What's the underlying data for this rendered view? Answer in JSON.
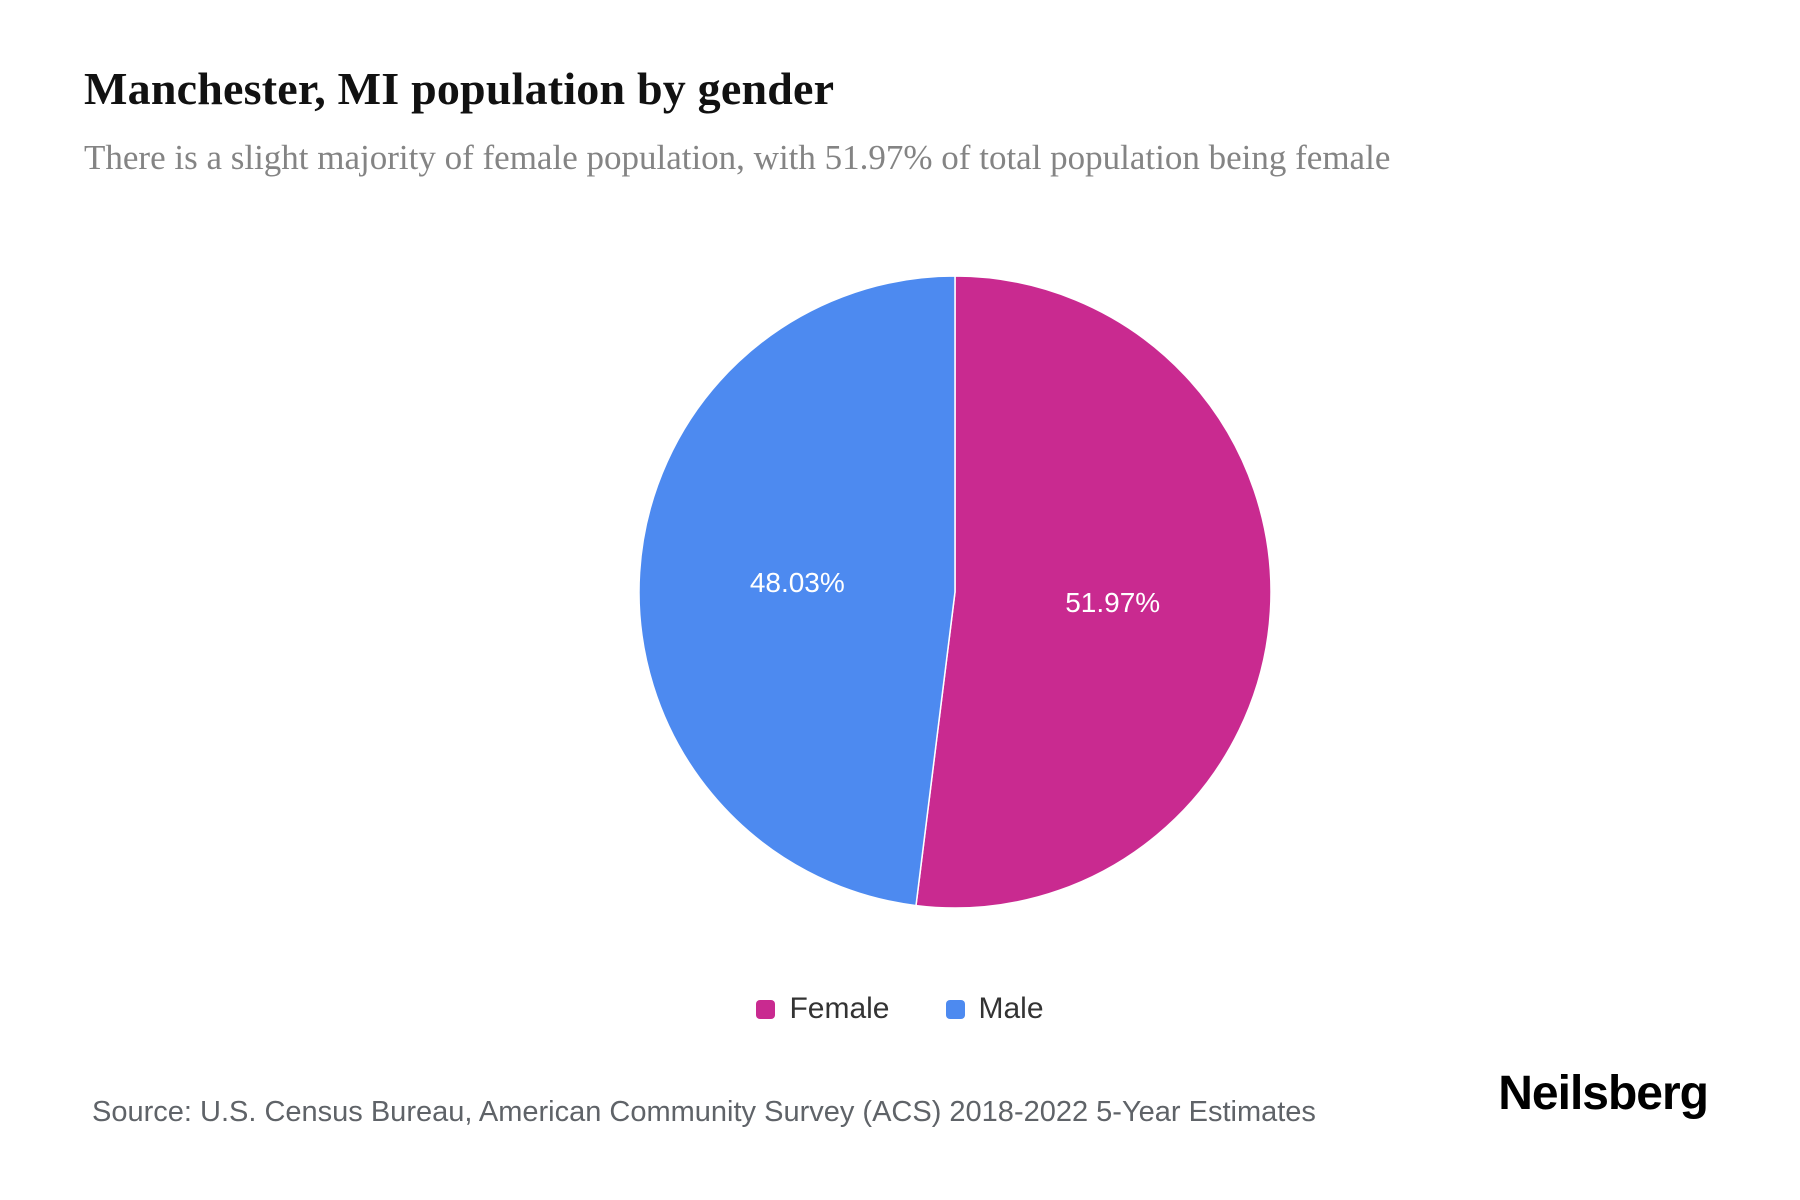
{
  "header": {
    "title": "Manchester, MI population by gender",
    "subtitle": "There is a slight majority of female population, with 51.97% of total population being female"
  },
  "chart_data": {
    "type": "pie",
    "title": "Manchester, MI population by gender",
    "slices": [
      {
        "label": "Female",
        "value": 51.97,
        "display": "51.97%",
        "color": "#c92a90"
      },
      {
        "label": "Male",
        "value": 48.03,
        "display": "48.03%",
        "color": "#4d8af0"
      }
    ],
    "start_angle_deg": 0,
    "direction": "clockwise",
    "label_color": "#ffffff",
    "legend_position": "bottom"
  },
  "legend": {
    "items": [
      {
        "label": "Female",
        "color": "#c92a90"
      },
      {
        "label": "Male",
        "color": "#4d8af0"
      }
    ]
  },
  "footer": {
    "source": "Source: U.S. Census Bureau, American Community Survey (ACS) 2018-2022 5-Year Estimates",
    "brand": "Neilsberg"
  }
}
